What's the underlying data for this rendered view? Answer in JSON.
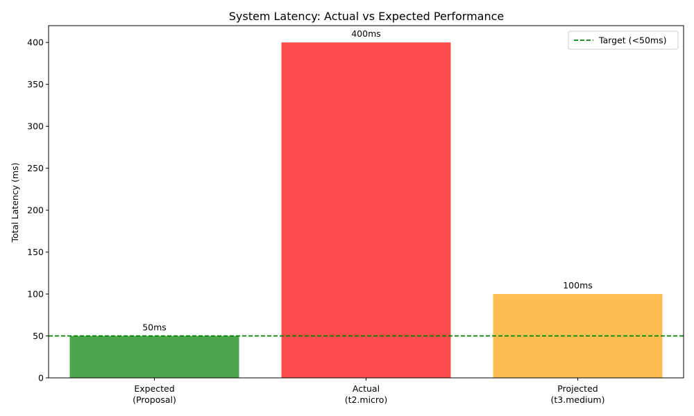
{
  "chart_data": {
    "type": "bar",
    "title": "System Latency: Actual vs Expected Performance",
    "xlabel": "",
    "ylabel": "Total Latency (ms)",
    "ylim": [
      0,
      420
    ],
    "yticks": [
      0,
      50,
      100,
      150,
      200,
      250,
      300,
      350,
      400
    ],
    "categories": [
      [
        "Expected",
        "(Proposal)"
      ],
      [
        "Actual",
        "(t2.micro)"
      ],
      [
        "Projected",
        "(t3.medium)"
      ]
    ],
    "values": [
      50,
      400,
      100
    ],
    "value_labels": [
      "50ms",
      "400ms",
      "100ms"
    ],
    "colors": [
      "#4ca64c",
      "#ff4c4c",
      "#fdbf4f"
    ],
    "reference_line": {
      "value": 50,
      "label": "Target (<50ms)",
      "color": "#008000",
      "style": "dashed"
    },
    "legend_position": "top-right",
    "grid": false
  }
}
